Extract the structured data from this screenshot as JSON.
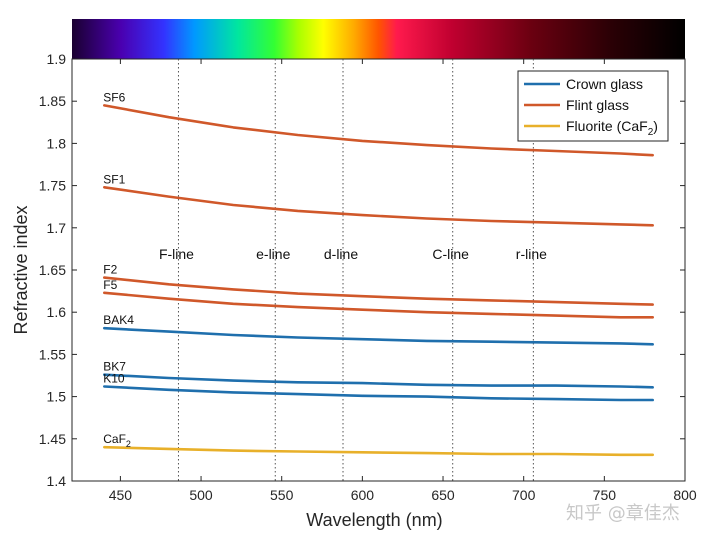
{
  "chart_data": {
    "type": "line",
    "title": "",
    "xlabel": "Wavelength (nm)",
    "ylabel": "Refractive index",
    "xlim": [
      420,
      800
    ],
    "ylim": [
      1.4,
      1.9
    ],
    "xticks": [
      450,
      500,
      550,
      600,
      650,
      700,
      750,
      800
    ],
    "yticks": [
      1.4,
      1.45,
      1.5,
      1.55,
      1.6,
      1.65,
      1.7,
      1.75,
      1.8,
      1.85,
      1.9
    ],
    "xtick_labels": [
      "450",
      "500",
      "550",
      "600",
      "650",
      "700",
      "750",
      "800"
    ],
    "ytick_labels": [
      "1.4",
      "1.45",
      "1.5",
      "1.55",
      "1.6",
      "1.65",
      "1.7",
      "1.75",
      "1.8",
      "1.85",
      "1.9"
    ],
    "grid": false,
    "legend_position": "top-right",
    "spectrum_bar": true,
    "legend": [
      {
        "label": "Crown glass",
        "color": "#1f6fad"
      },
      {
        "label": "Flint glass",
        "color": "#d0582a"
      },
      {
        "label": "Fluorite (CaF",
        "sub": "2",
        "suffix": ")",
        "color": "#e8b02a"
      }
    ],
    "reference_lines": [
      {
        "label": "F-line",
        "x": 486
      },
      {
        "label": "e-line",
        "x": 546
      },
      {
        "label": "d-line",
        "x": 588
      },
      {
        "label": "C-line",
        "x": 656
      },
      {
        "label": "r-line",
        "x": 706
      }
    ],
    "series": [
      {
        "label": "SF6",
        "group": "Flint glass",
        "color": "#d0582a",
        "x": [
          440,
          480,
          520,
          560,
          600,
          640,
          680,
          720,
          760,
          780
        ],
        "y": [
          1.845,
          1.831,
          1.819,
          1.81,
          1.803,
          1.798,
          1.794,
          1.791,
          1.788,
          1.786
        ]
      },
      {
        "label": "SF1",
        "group": "Flint glass",
        "color": "#d0582a",
        "x": [
          440,
          480,
          520,
          560,
          600,
          640,
          680,
          720,
          760,
          780
        ],
        "y": [
          1.748,
          1.737,
          1.727,
          1.72,
          1.715,
          1.711,
          1.708,
          1.706,
          1.704,
          1.703
        ]
      },
      {
        "label": "F2",
        "group": "Flint glass",
        "color": "#d0582a",
        "x": [
          440,
          480,
          520,
          560,
          600,
          640,
          680,
          720,
          760,
          780
        ],
        "y": [
          1.641,
          1.633,
          1.627,
          1.622,
          1.619,
          1.616,
          1.614,
          1.612,
          1.61,
          1.609
        ]
      },
      {
        "label": "F5",
        "group": "Flint glass",
        "color": "#d0582a",
        "x": [
          440,
          480,
          520,
          560,
          600,
          640,
          680,
          720,
          760,
          780
        ],
        "y": [
          1.623,
          1.616,
          1.61,
          1.606,
          1.603,
          1.6,
          1.598,
          1.596,
          1.594,
          1.594
        ]
      },
      {
        "label": "BAK4",
        "group": "Crown glass",
        "color": "#1f6fad",
        "x": [
          440,
          480,
          520,
          560,
          600,
          640,
          680,
          720,
          760,
          780
        ],
        "y": [
          1.581,
          1.577,
          1.573,
          1.57,
          1.568,
          1.566,
          1.565,
          1.564,
          1.563,
          1.562
        ]
      },
      {
        "label": "BK7",
        "group": "Crown glass",
        "color": "#1f6fad",
        "x": [
          440,
          480,
          520,
          560,
          600,
          640,
          680,
          720,
          760,
          780
        ],
        "y": [
          1.526,
          1.522,
          1.519,
          1.517,
          1.516,
          1.514,
          1.513,
          1.513,
          1.512,
          1.511
        ]
      },
      {
        "label": "K10",
        "group": "Crown glass",
        "color": "#1f6fad",
        "x": [
          440,
          480,
          520,
          560,
          600,
          640,
          680,
          720,
          760,
          780
        ],
        "y": [
          1.512,
          1.508,
          1.505,
          1.503,
          1.501,
          1.5,
          1.498,
          1.497,
          1.496,
          1.496
        ]
      },
      {
        "label": "CaF",
        "label_sub": "2",
        "group": "Fluorite (CaF2)",
        "color": "#e8b02a",
        "x": [
          440,
          480,
          520,
          560,
          600,
          640,
          680,
          720,
          760,
          780
        ],
        "y": [
          1.44,
          1.438,
          1.436,
          1.435,
          1.434,
          1.433,
          1.432,
          1.432,
          1.431,
          1.431
        ]
      }
    ]
  },
  "watermark": "知乎 @章佳杰"
}
